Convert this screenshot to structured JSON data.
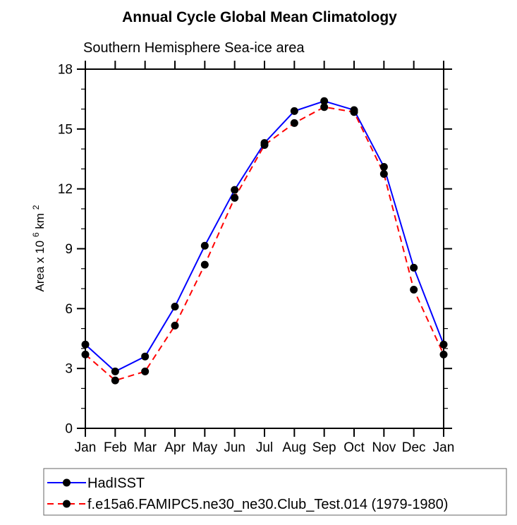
{
  "chart_data": {
    "type": "line",
    "title": "Annual Cycle Global Mean Climatology",
    "subtitle": "Southern Hemisphere Sea-ice area",
    "ylabel": "Area x 10^6 km^2",
    "ylabel_parts": {
      "prefix": "Area x 10",
      "sup1": "6",
      "mid": " km",
      "sup2": "2"
    },
    "xlabel": "",
    "categories": [
      "Jan",
      "Feb",
      "Mar",
      "Apr",
      "May",
      "Jun",
      "Jul",
      "Aug",
      "Sep",
      "Oct",
      "Nov",
      "Dec",
      "Jan"
    ],
    "series": [
      {
        "name": "HadISST",
        "color": "#0000ff",
        "line_style": "solid",
        "marker": "filled-circle",
        "values": [
          4.2,
          2.85,
          3.6,
          6.1,
          9.15,
          11.95,
          14.3,
          15.9,
          16.4,
          15.95,
          13.1,
          8.05,
          4.2
        ]
      },
      {
        "name": "f.e15a6.FAMIPC5.ne30_ne30.Club_Test.014 (1979-1980)",
        "color": "#ff0000",
        "line_style": "dashed",
        "marker": "filled-circle",
        "values": [
          3.7,
          2.4,
          2.85,
          5.15,
          8.2,
          11.55,
          14.2,
          15.3,
          16.1,
          15.85,
          12.75,
          6.95,
          3.7
        ]
      }
    ],
    "marker_color": "#000000",
    "ylim": [
      0,
      18
    ],
    "yticks": [
      0,
      3,
      6,
      9,
      12,
      15,
      18
    ],
    "y_minor_interval": 1,
    "grid": false,
    "legend_position": "below-left",
    "axis_color": "#000000",
    "legend_border_color": "#666666"
  }
}
